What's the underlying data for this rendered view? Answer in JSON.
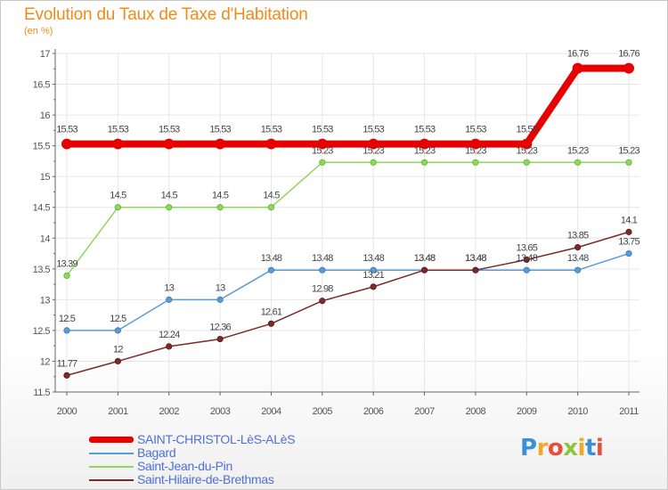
{
  "header": {
    "title": "Evolution du Taux de Taxe d'Habitation",
    "subtitle": "(en %)"
  },
  "chart_data": {
    "type": "line",
    "title": "Evolution du Taux de Taxe d'Habitation",
    "ylabel": "(en %)",
    "xlabel": "",
    "ylim": [
      11.5,
      17
    ],
    "yticks": [
      "11.5",
      "12",
      "12.5",
      "13",
      "13.5",
      "14",
      "14.5",
      "15",
      "15.5",
      "16",
      "16.5",
      "17"
    ],
    "categories": [
      "2000",
      "2001",
      "2002",
      "2003",
      "2004",
      "2005",
      "2006",
      "2007",
      "2008",
      "2009",
      "2010",
      "2011"
    ],
    "series": [
      {
        "name": "SAINT-CHRISTOL-LèS-ALèS",
        "color": "#e60000",
        "values": [
          15.53,
          15.53,
          15.53,
          15.53,
          15.53,
          15.53,
          15.53,
          15.53,
          15.53,
          15.53,
          16.76,
          16.76
        ],
        "labels": [
          "15.53",
          "15.53",
          "15.53",
          "15.53",
          "15.53",
          "15.53",
          "15.53",
          "15.53",
          "15.53",
          "15.53",
          "16.76",
          "16.76"
        ]
      },
      {
        "name": "Bagard",
        "color": "#5b9bd5",
        "values": [
          12.5,
          12.5,
          13,
          13,
          13.48,
          13.48,
          13.48,
          13.48,
          13.48,
          13.48,
          13.48,
          13.75
        ],
        "labels": [
          "12.5",
          "12.5",
          "13",
          "13",
          "13.48",
          "13.48",
          "13.48",
          "13.48",
          "13.48",
          "13.48",
          "13.48",
          "13.75"
        ]
      },
      {
        "name": "Saint-Jean-du-Pin",
        "color": "#8fd85a",
        "values": [
          13.39,
          14.5,
          14.5,
          14.5,
          14.5,
          15.23,
          15.23,
          15.23,
          15.23,
          15.23,
          15.23,
          15.23
        ],
        "labels": [
          "13.39",
          "14.5",
          "14.5",
          "14.5",
          "14.5",
          "15.23",
          "15.23",
          "15.23",
          "15.23",
          "15.23",
          "15.23",
          "15.23"
        ]
      },
      {
        "name": "Saint-Hilaire-de-Brethmas",
        "color": "#7b2b2b",
        "values": [
          11.77,
          12,
          12.24,
          12.36,
          12.61,
          12.98,
          13.21,
          13.48,
          13.48,
          13.65,
          13.85,
          14.1
        ],
        "labels": [
          "11.77",
          "12",
          "12.24",
          "12.36",
          "12.61",
          "12.98",
          "13.21",
          "13.48",
          "13.48",
          "13.65",
          "13.85",
          "14.1"
        ]
      }
    ],
    "legend_position": "bottom-left"
  },
  "legend": {
    "items": [
      {
        "label": "SAINT-CHRISTOL-LèS-ALèS",
        "color": "#e60000"
      },
      {
        "label": "Bagard",
        "color": "#5b9bd5"
      },
      {
        "label": "Saint-Jean-du-Pin",
        "color": "#8fd85a"
      },
      {
        "label": "Saint-Hilaire-de-Brethmas",
        "color": "#7b2b2b"
      }
    ]
  },
  "logo": {
    "text": "Proxiti",
    "colors": [
      "#3b8fd9",
      "#f5a623",
      "#e94e3c",
      "#8cc63f",
      "#f5a623",
      "#3b8fd9",
      "#e94e3c"
    ]
  }
}
